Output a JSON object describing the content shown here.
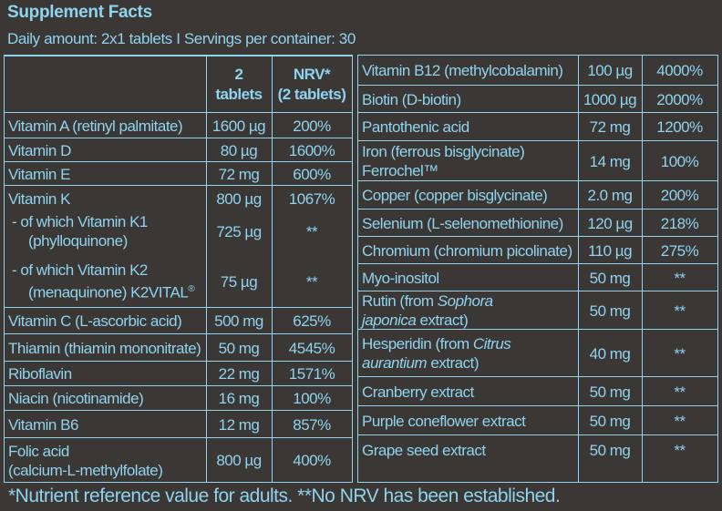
{
  "title": "Supplement Facts",
  "subtitle": "Daily amount: 2x1 tablets I Servings per container: 30",
  "header": {
    "amount_line1": "2",
    "amount_line2": "tablets",
    "nrv_line1": "NRV*",
    "nrv_line2": "(2 tablets)"
  },
  "left_rows": [
    {
      "name": [
        "Vitamin A (retinyl palmitate)"
      ],
      "amount": "1600 µg",
      "nrv": "200%"
    },
    {
      "name": [
        "Vitamin D"
      ],
      "amount": "80 µg",
      "nrv": "1600%"
    },
    {
      "name": [
        "Vitamin E"
      ],
      "amount": "72 mg",
      "nrv": "600%"
    },
    {
      "name": [
        "Vitamin K",
        " - of which Vitamin K1",
        "   (phylloquinone)",
        " - of which Vitamin K2",
        "   (menaquinone) K2VITAL®"
      ],
      "amount": "",
      "nrv": ""
    },
    {
      "name": [
        "Vitamin C (L-ascorbic acid)"
      ],
      "amount": "500 mg",
      "nrv": "625%"
    },
    {
      "name": [
        "Thiamin (thiamin mononitrate)"
      ],
      "amount": "50 mg",
      "nrv": "4545%"
    },
    {
      "name": [
        "Riboflavin"
      ],
      "amount": "22 mg",
      "nrv": "1571%"
    },
    {
      "name": [
        "Niacin (nicotinamide)"
      ],
      "amount": "16 mg",
      "nrv": "100%"
    },
    {
      "name": [
        "Vitamin B6"
      ],
      "amount": "12 mg",
      "nrv": "857%"
    },
    {
      "name": [
        "Folic acid",
        "(calcium-L-methylfolate)"
      ],
      "amount": "800 µg",
      "nrv": "400%"
    }
  ],
  "vitamin_k": {
    "name": "Vitamin K",
    "amount": "800 µg",
    "nrv": "1067%",
    "k1_line1": " - of which Vitamin K1",
    "k1_line2": "(phylloquinone)",
    "k1_amount": "725 µg",
    "k1_nrv": "**",
    "k2_line1": " - of which Vitamin K2",
    "k2_line2": "(menaquinone) K2VITAL",
    "k2_mark": "®",
    "k2_amount": "75 µg",
    "k2_nrv": "**"
  },
  "right_rows": [
    {
      "name": [
        "Vitamin B12 (methylcobalamin)"
      ],
      "amount": "100 µg",
      "nrv": "4000%"
    },
    {
      "name": [
        "Biotin (D-biotin)"
      ],
      "amount": "1000 µg",
      "nrv": "2000%"
    },
    {
      "name": [
        "Pantothenic acid"
      ],
      "amount": "72 mg",
      "nrv": "1200%"
    },
    {
      "name": [
        "Iron (ferrous bisglycinate)",
        "Ferrochel™"
      ],
      "amount": "14 mg",
      "nrv": "100%"
    },
    {
      "name": [
        "Copper (copper bisglycinate)"
      ],
      "amount": "2.0 mg",
      "nrv": "200%"
    },
    {
      "name": [
        "Selenium (L-selenomethionine)"
      ],
      "amount": "120 µg",
      "nrv": "218%"
    },
    {
      "name": [
        "Chromium (chromium picolinate)"
      ],
      "amount": "110 µg",
      "nrv": "275%"
    },
    {
      "name": [
        "Myo-inositol"
      ],
      "amount": "50 mg",
      "nrv": "**"
    },
    {
      "name": [
        "Rutin (from ",
        "Sophora",
        "japonica",
        " extract)"
      ],
      "amount": "50 mg",
      "nrv": "**"
    },
    {
      "name": [
        "Hesperidin (from ",
        "Citrus",
        "aurantium",
        " extract)"
      ],
      "amount": "40 mg",
      "nrv": "**"
    },
    {
      "name": [
        "Cranberry extract"
      ],
      "amount": "50 mg",
      "nrv": "**"
    },
    {
      "name": [
        "Purple coneflower extract"
      ],
      "amount": "50 mg",
      "nrv": "**"
    },
    {
      "name": [
        "Grape seed extract"
      ],
      "amount": "50 mg",
      "nrv": "**"
    }
  ],
  "footnote": "*Nutrient reference value for adults. **No NRV has been established."
}
